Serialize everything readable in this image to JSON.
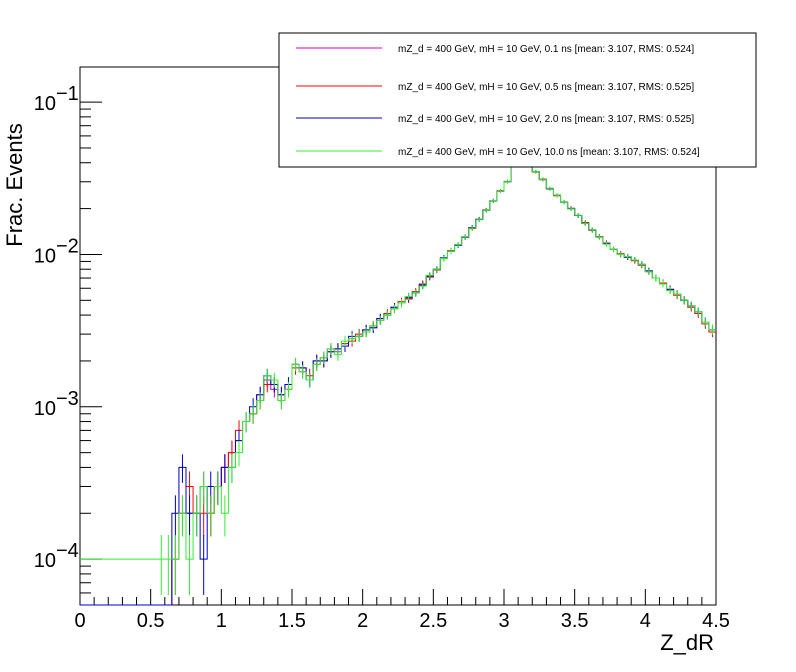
{
  "chart_data": {
    "type": "histogram",
    "xlabel": "Z_dR",
    "ylabel": "Frac. Events",
    "xlim": [
      0,
      4.5
    ],
    "ylim": [
      5e-05,
      0.17
    ],
    "ylog": true,
    "bin_width": 0.05,
    "x_ticks": [
      "0",
      "0.5",
      "1",
      "1.5",
      "2",
      "2.5",
      "3",
      "3.5",
      "4",
      "4.5"
    ],
    "y_ticks": [
      {
        "value": 0.0001,
        "base": "10",
        "exp": "−4"
      },
      {
        "value": 0.001,
        "base": "10",
        "exp": "−3"
      },
      {
        "value": 0.01,
        "base": "10",
        "exp": "−2"
      },
      {
        "value": 0.1,
        "base": "10",
        "exp": "−1"
      }
    ],
    "legend_position": "top-right",
    "series": [
      {
        "name": "mZ_d = 400 GeV, mH = 10 GeV, 0.1 ns [mean: 3.107, RMS: 0.524]",
        "color": "#cc00cc"
      },
      {
        "name": "mZ_d = 400 GeV, mH = 10 GeV, 0.5 ns [mean: 3.107, RMS: 0.525]",
        "color": "#ff0000"
      },
      {
        "name": "mZ_d = 400 GeV, mH = 10 GeV, 2.0 ns [mean: 3.107, RMS: 0.525]",
        "color": "#0000cc"
      },
      {
        "name": "mZ_d = 400 GeV, mH = 10 GeV, 10.0 ns [mean: 3.107, RMS: 0.524]",
        "color": "#33ee33"
      }
    ],
    "x": [
      0.575,
      0.625,
      0.675,
      0.725,
      0.775,
      0.825,
      0.875,
      0.925,
      0.975,
      1.025,
      1.075,
      1.125,
      1.175,
      1.225,
      1.275,
      1.325,
      1.375,
      1.425,
      1.475,
      1.525,
      1.575,
      1.625,
      1.675,
      1.725,
      1.775,
      1.825,
      1.875,
      1.925,
      1.975,
      2.025,
      2.075,
      2.125,
      2.175,
      2.225,
      2.275,
      2.325,
      2.375,
      2.425,
      2.475,
      2.525,
      2.575,
      2.625,
      2.675,
      2.725,
      2.775,
      2.825,
      2.875,
      2.925,
      2.975,
      3.025,
      3.075,
      3.125,
      3.175,
      3.225,
      3.275,
      3.325,
      3.375,
      3.425,
      3.475,
      3.525,
      3.575,
      3.625,
      3.675,
      3.725,
      3.775,
      3.825,
      3.875,
      3.925,
      3.975,
      4.025,
      4.075,
      4.125,
      4.175,
      4.225,
      4.275,
      4.325,
      4.375,
      4.425,
      4.475
    ],
    "values": {
      "0.1 ns": [
        5e-05,
        5e-05,
        0.0001,
        0.0002,
        0.0002,
        0.0002,
        0.0003,
        0.0002,
        0.0003,
        0.0004,
        0.0005,
        0.0006,
        0.0008,
        0.0009,
        0.0012,
        0.0015,
        0.0013,
        0.0011,
        0.0014,
        0.0019,
        0.0017,
        0.0015,
        0.002,
        0.0021,
        0.0024,
        0.0023,
        0.0026,
        0.0028,
        0.0029,
        0.0032,
        0.0033,
        0.0038,
        0.004,
        0.0045,
        0.0048,
        0.0052,
        0.0056,
        0.0063,
        0.0072,
        0.008,
        0.0095,
        0.0105,
        0.0115,
        0.013,
        0.015,
        0.017,
        0.0195,
        0.0225,
        0.026,
        0.03,
        0.039,
        0.046,
        0.043,
        0.035,
        0.031,
        0.027,
        0.0245,
        0.022,
        0.02,
        0.018,
        0.016,
        0.0145,
        0.013,
        0.0118,
        0.0108,
        0.01,
        0.0096,
        0.0092,
        0.0086,
        0.0078,
        0.007,
        0.0064,
        0.0059,
        0.0055,
        0.005,
        0.0046,
        0.0042,
        0.0036,
        0.0032
      ],
      "0.5 ns": [
        5e-05,
        5e-05,
        0.0001,
        0.0002,
        0.0003,
        0.0002,
        0.0002,
        0.0002,
        0.0003,
        0.0004,
        0.0005,
        0.0007,
        0.0008,
        0.0009,
        0.0011,
        0.0014,
        0.0014,
        0.0012,
        0.0013,
        0.0018,
        0.0018,
        0.0016,
        0.0019,
        0.002,
        0.0023,
        0.0024,
        0.0026,
        0.0027,
        0.003,
        0.0031,
        0.0034,
        0.0037,
        0.0041,
        0.0044,
        0.0049,
        0.0051,
        0.0057,
        0.0064,
        0.0071,
        0.0079,
        0.0094,
        0.0106,
        0.0116,
        0.013,
        0.0148,
        0.017,
        0.0196,
        0.0225,
        0.0262,
        0.0302,
        0.0395,
        0.0462,
        0.0425,
        0.0348,
        0.0312,
        0.027,
        0.0243,
        0.0221,
        0.0201,
        0.018,
        0.0162,
        0.0144,
        0.0131,
        0.0119,
        0.0108,
        0.0101,
        0.0096,
        0.0091,
        0.0085,
        0.0077,
        0.007,
        0.0065,
        0.0059,
        0.0054,
        0.005,
        0.0045,
        0.0041,
        0.0035,
        0.0031
      ],
      "2.0 ns": [
        5e-05,
        5e-05,
        0.0002,
        0.0004,
        0.0002,
        0.0002,
        0.0001,
        0.0003,
        0.0003,
        0.0004,
        0.0004,
        0.0006,
        0.0008,
        0.001,
        0.0012,
        0.0016,
        0.0014,
        0.0012,
        0.0014,
        0.0019,
        0.0018,
        0.0015,
        0.002,
        0.002,
        0.0023,
        0.0024,
        0.0025,
        0.0029,
        0.0029,
        0.0032,
        0.0033,
        0.0038,
        0.004,
        0.0045,
        0.0048,
        0.0052,
        0.0056,
        0.0063,
        0.0072,
        0.008,
        0.0095,
        0.0105,
        0.0115,
        0.013,
        0.015,
        0.017,
        0.0195,
        0.0225,
        0.026,
        0.03,
        0.039,
        0.046,
        0.043,
        0.035,
        0.031,
        0.027,
        0.0245,
        0.022,
        0.02,
        0.018,
        0.016,
        0.0145,
        0.013,
        0.0118,
        0.0108,
        0.01,
        0.0096,
        0.0092,
        0.0086,
        0.0078,
        0.007,
        0.0064,
        0.0059,
        0.0055,
        0.005,
        0.0046,
        0.0042,
        0.0036,
        0.0032
      ],
      "10.0 ns": [
        0.0001,
        0.0001,
        0.0001,
        0.0002,
        0.0001,
        0.0002,
        0.0003,
        0.0002,
        0.0003,
        0.0002,
        0.0004,
        0.0005,
        0.0008,
        0.0009,
        0.0011,
        0.0016,
        0.0015,
        0.0011,
        0.0013,
        0.0019,
        0.0017,
        0.0015,
        0.0019,
        0.0021,
        0.0024,
        0.0022,
        0.0027,
        0.0028,
        0.0029,
        0.0031,
        0.0034,
        0.0037,
        0.004,
        0.0044,
        0.0048,
        0.0053,
        0.0056,
        0.0062,
        0.0073,
        0.008,
        0.0094,
        0.0105,
        0.0116,
        0.0131,
        0.0149,
        0.0169,
        0.0195,
        0.0226,
        0.026,
        0.03,
        0.039,
        0.046,
        0.0428,
        0.035,
        0.031,
        0.0272,
        0.0245,
        0.022,
        0.0199,
        0.0181,
        0.016,
        0.0145,
        0.013,
        0.0117,
        0.0108,
        0.01,
        0.0097,
        0.0092,
        0.0086,
        0.0077,
        0.007,
        0.0064,
        0.0058,
        0.0055,
        0.005,
        0.0046,
        0.0042,
        0.0036,
        0.0032
      ]
    }
  }
}
